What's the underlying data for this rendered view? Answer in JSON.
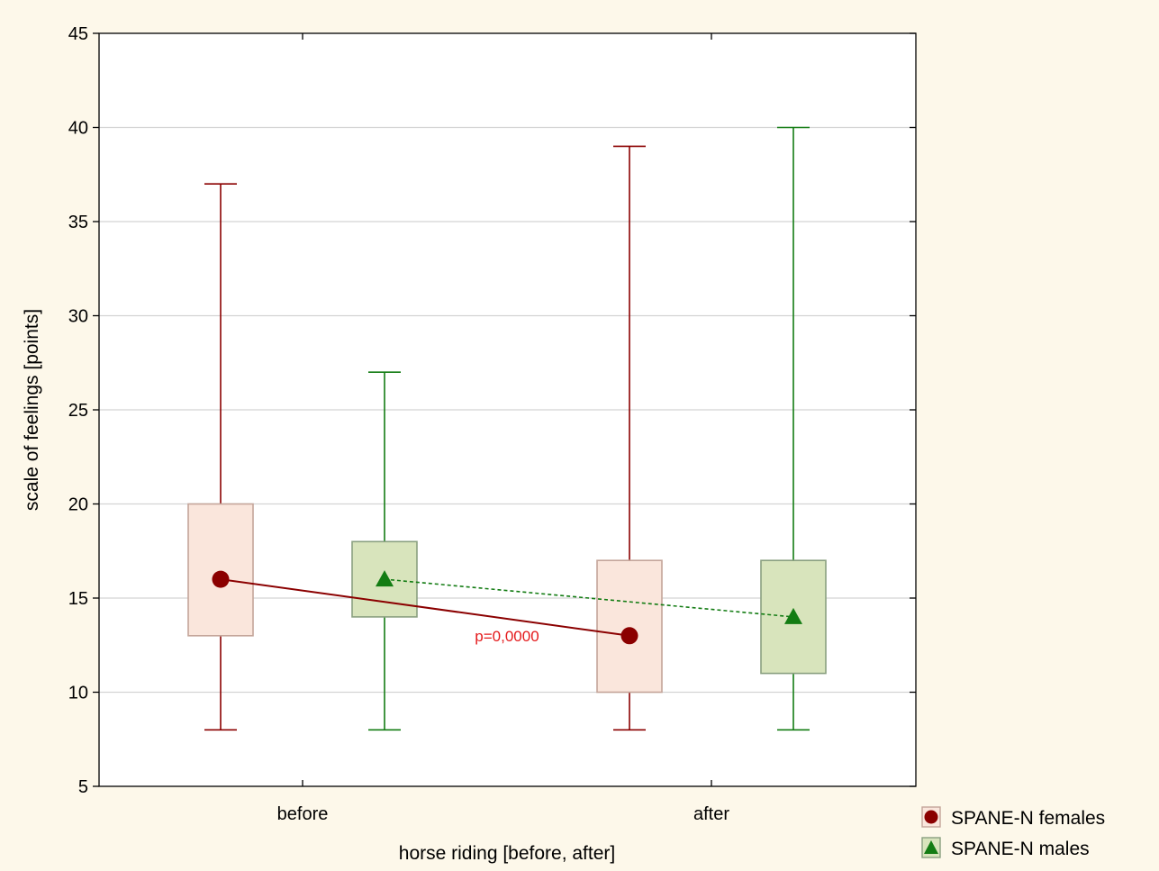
{
  "chart_data": {
    "type": "box",
    "title": "",
    "xlabel": "horse riding [before, after]",
    "ylabel": "scale of feelings [points]",
    "ylim": [
      5,
      45
    ],
    "yticks": [
      5,
      10,
      15,
      20,
      25,
      30,
      35,
      40,
      45
    ],
    "categories": [
      "before",
      "after"
    ],
    "grid": "horizontal",
    "legend_placement": "bottom-right, outside plot",
    "series": [
      {
        "name": "SPANE-N females",
        "marker": "circle",
        "line_style": "solid",
        "color": "#8b0000",
        "box_fill": "#fae6dc",
        "box_stroke": "#c4a59a",
        "boxes": [
          {
            "category": "before",
            "min": 8,
            "q1": 13,
            "median": 16,
            "q3": 20,
            "max": 37
          },
          {
            "category": "after",
            "min": 8,
            "q1": 10,
            "median": 13,
            "q3": 17,
            "max": 39
          }
        ]
      },
      {
        "name": "SPANE-N males",
        "marker": "triangle",
        "line_style": "dotted",
        "color": "#137c13",
        "box_fill": "#d8e4bc",
        "box_stroke": "#8aa080",
        "boxes": [
          {
            "category": "before",
            "min": 8,
            "q1": 14,
            "median": 16,
            "q3": 18,
            "max": 27
          },
          {
            "category": "after",
            "min": 8,
            "q1": 11,
            "median": 14,
            "q3": 17,
            "max": 40
          }
        ]
      }
    ],
    "annotations": [
      {
        "text": "p=0,0000",
        "color": "#e41a1c",
        "x": 0.5,
        "y": 12.7
      }
    ]
  },
  "colors": {
    "background": "#fdf8ea",
    "plot_background": "#ffffff",
    "grid": "#d3d3d3"
  }
}
